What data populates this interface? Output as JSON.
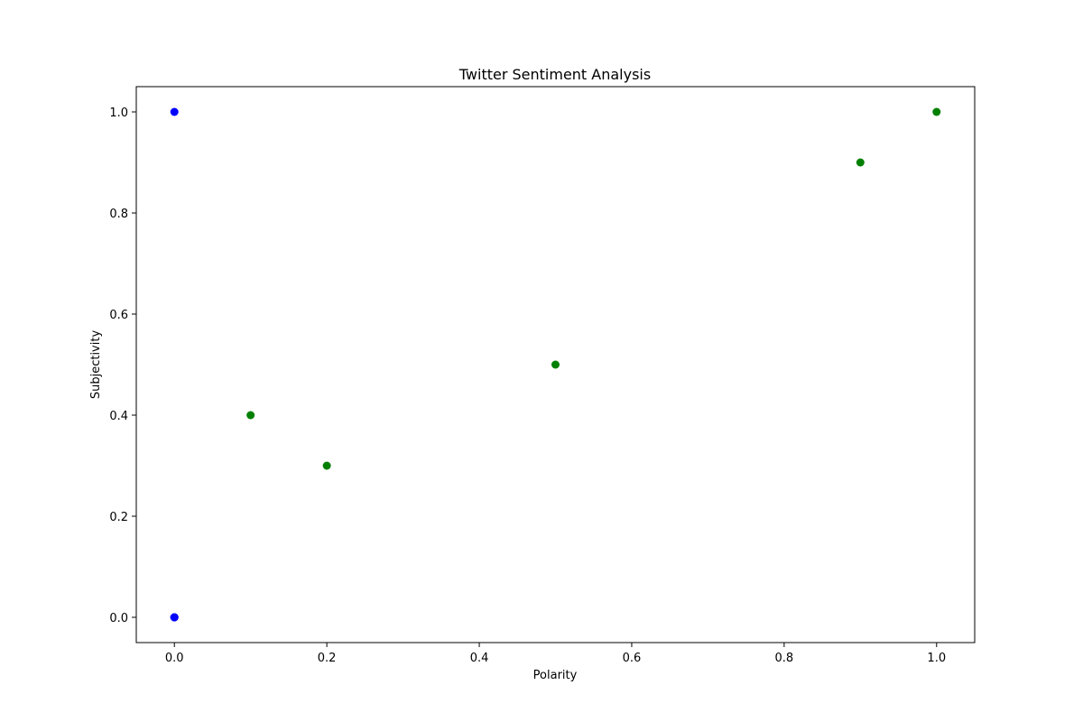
{
  "chart_data": {
    "type": "scatter",
    "title": "Twitter Sentiment Analysis",
    "xlabel": "Polarity",
    "ylabel": "Subjectivity",
    "xlim": [
      -0.05,
      1.05
    ],
    "ylim": [
      -0.05,
      1.05
    ],
    "xticks": [
      0.0,
      0.2,
      0.4,
      0.6,
      0.8,
      1.0
    ],
    "yticks": [
      0.0,
      0.2,
      0.4,
      0.6,
      0.8,
      1.0
    ],
    "xtick_labels": [
      "0.0",
      "0.2",
      "0.4",
      "0.6",
      "0.8",
      "1.0"
    ],
    "ytick_labels": [
      "0.0",
      "0.2",
      "0.4",
      "0.6",
      "0.8",
      "1.0"
    ],
    "grid": false,
    "series": [
      {
        "color": "#0000ff",
        "points": [
          {
            "x": 0.0,
            "y": 1.0
          },
          {
            "x": 0.0,
            "y": 0.0
          },
          {
            "x": 0.0,
            "y": 0.0
          },
          {
            "x": 0.0,
            "y": 0.0
          }
        ]
      },
      {
        "color": "#008000",
        "points": [
          {
            "x": 0.1,
            "y": 0.4
          },
          {
            "x": 0.2,
            "y": 0.3
          },
          {
            "x": 0.5,
            "y": 0.5
          },
          {
            "x": 0.9,
            "y": 0.9
          },
          {
            "x": 1.0,
            "y": 1.0
          }
        ]
      }
    ]
  }
}
